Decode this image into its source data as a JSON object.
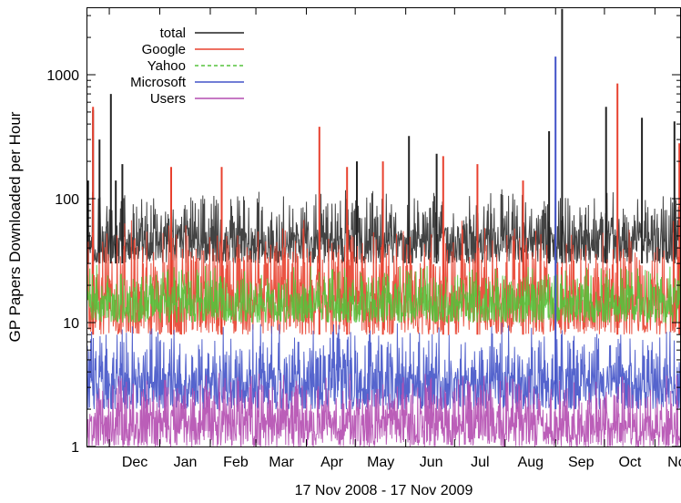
{
  "chart_data": {
    "type": "line",
    "title": "",
    "xlabel": "17 Nov 2008 - 17 Nov 2009",
    "ylabel": "GP Papers Downloaded per Hour",
    "yscale": "log",
    "ylim": [
      1,
      3500
    ],
    "xlim": [
      "2008-11-17",
      "2009-11-17"
    ],
    "grid": false,
    "legend_position": "top-left",
    "y_ticks": [
      {
        "value": 1,
        "label": "1"
      },
      {
        "value": 10,
        "label": "10"
      },
      {
        "value": 100,
        "label": "100"
      },
      {
        "value": 1000,
        "label": "1000"
      }
    ],
    "x_ticks": [
      {
        "date": "2008-12-01",
        "label": "Dec"
      },
      {
        "date": "2009-01-01",
        "label": "Jan"
      },
      {
        "date": "2009-02-01",
        "label": "Feb"
      },
      {
        "date": "2009-03-01",
        "label": "Mar"
      },
      {
        "date": "2009-04-01",
        "label": "Apr"
      },
      {
        "date": "2009-05-01",
        "label": "May"
      },
      {
        "date": "2009-06-01",
        "label": "Jun"
      },
      {
        "date": "2009-07-01",
        "label": "Jul"
      },
      {
        "date": "2009-08-01",
        "label": "Aug"
      },
      {
        "date": "2009-09-01",
        "label": "Sep"
      },
      {
        "date": "2009-10-01",
        "label": "Oct"
      },
      {
        "date": "2009-11-01",
        "label": "Nov"
      }
    ],
    "series": [
      {
        "name": "total",
        "color": "#222222",
        "line_style": "solid",
        "typical_range": [
          30,
          120
        ],
        "peaks": [
          {
            "date": "2008-11-18",
            "value": 140
          },
          {
            "date": "2008-11-21",
            "value": 520
          },
          {
            "date": "2008-11-25",
            "value": 300
          },
          {
            "date": "2008-12-02",
            "value": 700
          },
          {
            "date": "2008-12-05",
            "value": 140
          },
          {
            "date": "2008-12-09",
            "value": 190
          },
          {
            "date": "2009-05-02",
            "value": 200
          },
          {
            "date": "2009-06-03",
            "value": 320
          },
          {
            "date": "2009-06-20",
            "value": 230
          },
          {
            "date": "2009-08-28",
            "value": 350
          },
          {
            "date": "2009-09-05",
            "value": 3400
          },
          {
            "date": "2009-10-02",
            "value": 550
          },
          {
            "date": "2009-10-24",
            "value": 450
          },
          {
            "date": "2009-11-13",
            "value": 420
          }
        ]
      },
      {
        "name": "Google",
        "color": "#e8412f",
        "line_style": "solid",
        "typical_range": [
          8,
          70
        ],
        "peaks": [
          {
            "date": "2008-11-21",
            "value": 550
          },
          {
            "date": "2009-01-08",
            "value": 180
          },
          {
            "date": "2009-02-08",
            "value": 180
          },
          {
            "date": "2009-04-09",
            "value": 380
          },
          {
            "date": "2009-04-26",
            "value": 180
          },
          {
            "date": "2009-05-18",
            "value": 200
          },
          {
            "date": "2009-06-24",
            "value": 220
          },
          {
            "date": "2009-07-15",
            "value": 190
          },
          {
            "date": "2009-08-12",
            "value": 140
          },
          {
            "date": "2009-10-09",
            "value": 850
          },
          {
            "date": "2009-11-16",
            "value": 280
          }
        ]
      },
      {
        "name": "Yahoo",
        "color": "#55c33c",
        "line_style": "dashed",
        "typical_range": [
          10,
          30
        ]
      },
      {
        "name": "Microsoft",
        "color": "#4253c8",
        "line_style": "solid",
        "typical_range": [
          2,
          10
        ],
        "peaks": [
          {
            "date": "2009-09-01",
            "value": 1400
          }
        ]
      },
      {
        "name": "Users",
        "color": "#b44db0",
        "line_style": "solid",
        "typical_range": [
          1,
          4
        ]
      }
    ]
  }
}
